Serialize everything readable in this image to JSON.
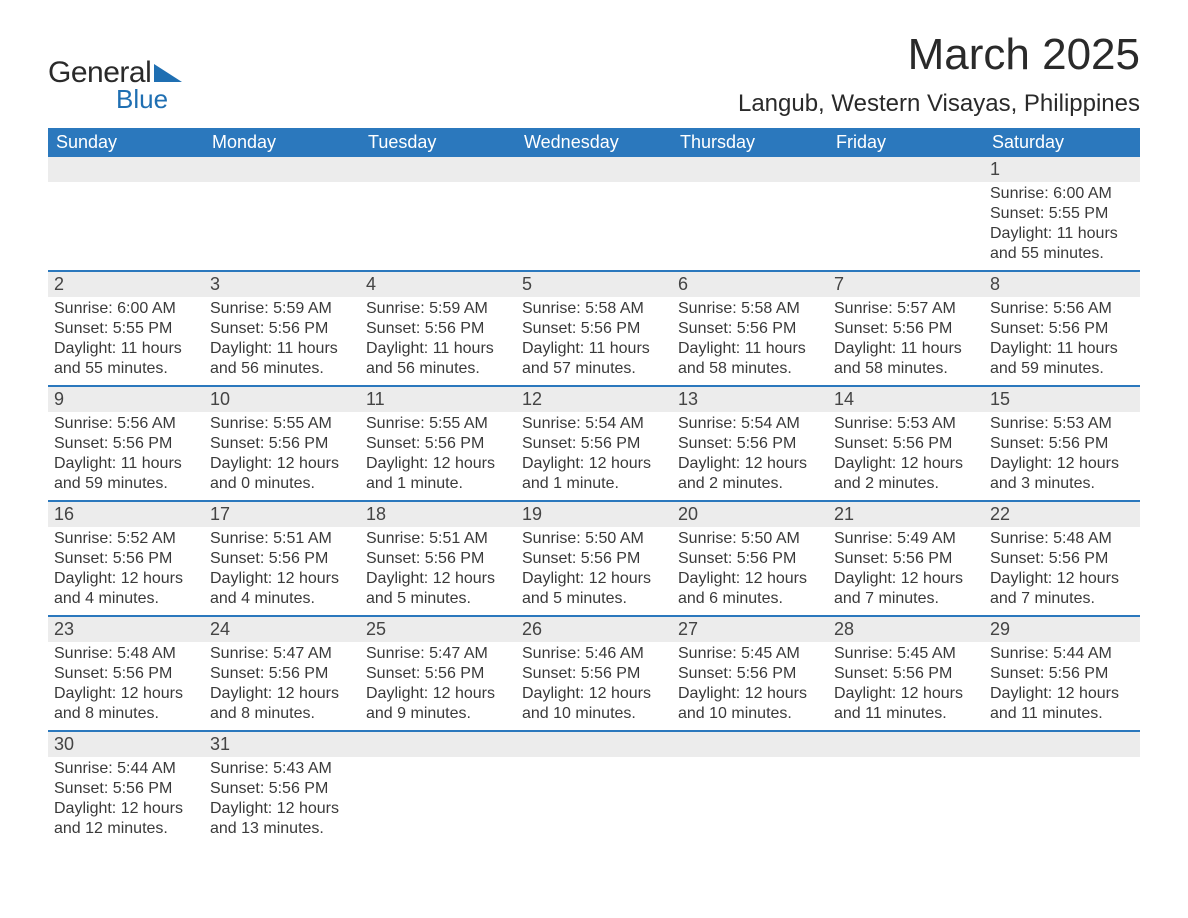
{
  "logo": {
    "general": "General",
    "blue": "Blue",
    "tri_color": "#1f6fb2"
  },
  "title": "March 2025",
  "location": "Langub, Western Visayas, Philippines",
  "colors": {
    "header_bg": "#2b78bd",
    "header_text": "#ffffff",
    "daynum_bg": "#ececec",
    "row_border": "#2b78bd",
    "body_text": "#3a3a3a"
  },
  "weekdays": [
    "Sunday",
    "Monday",
    "Tuesday",
    "Wednesday",
    "Thursday",
    "Friday",
    "Saturday"
  ],
  "weeks": [
    [
      null,
      null,
      null,
      null,
      null,
      null,
      {
        "n": "1",
        "sr": "Sunrise: 6:00 AM",
        "ss": "Sunset: 5:55 PM",
        "d1": "Daylight: 11 hours",
        "d2": "and 55 minutes."
      }
    ],
    [
      {
        "n": "2",
        "sr": "Sunrise: 6:00 AM",
        "ss": "Sunset: 5:55 PM",
        "d1": "Daylight: 11 hours",
        "d2": "and 55 minutes."
      },
      {
        "n": "3",
        "sr": "Sunrise: 5:59 AM",
        "ss": "Sunset: 5:56 PM",
        "d1": "Daylight: 11 hours",
        "d2": "and 56 minutes."
      },
      {
        "n": "4",
        "sr": "Sunrise: 5:59 AM",
        "ss": "Sunset: 5:56 PM",
        "d1": "Daylight: 11 hours",
        "d2": "and 56 minutes."
      },
      {
        "n": "5",
        "sr": "Sunrise: 5:58 AM",
        "ss": "Sunset: 5:56 PM",
        "d1": "Daylight: 11 hours",
        "d2": "and 57 minutes."
      },
      {
        "n": "6",
        "sr": "Sunrise: 5:58 AM",
        "ss": "Sunset: 5:56 PM",
        "d1": "Daylight: 11 hours",
        "d2": "and 58 minutes."
      },
      {
        "n": "7",
        "sr": "Sunrise: 5:57 AM",
        "ss": "Sunset: 5:56 PM",
        "d1": "Daylight: 11 hours",
        "d2": "and 58 minutes."
      },
      {
        "n": "8",
        "sr": "Sunrise: 5:56 AM",
        "ss": "Sunset: 5:56 PM",
        "d1": "Daylight: 11 hours",
        "d2": "and 59 minutes."
      }
    ],
    [
      {
        "n": "9",
        "sr": "Sunrise: 5:56 AM",
        "ss": "Sunset: 5:56 PM",
        "d1": "Daylight: 11 hours",
        "d2": "and 59 minutes."
      },
      {
        "n": "10",
        "sr": "Sunrise: 5:55 AM",
        "ss": "Sunset: 5:56 PM",
        "d1": "Daylight: 12 hours",
        "d2": "and 0 minutes."
      },
      {
        "n": "11",
        "sr": "Sunrise: 5:55 AM",
        "ss": "Sunset: 5:56 PM",
        "d1": "Daylight: 12 hours",
        "d2": "and 1 minute."
      },
      {
        "n": "12",
        "sr": "Sunrise: 5:54 AM",
        "ss": "Sunset: 5:56 PM",
        "d1": "Daylight: 12 hours",
        "d2": "and 1 minute."
      },
      {
        "n": "13",
        "sr": "Sunrise: 5:54 AM",
        "ss": "Sunset: 5:56 PM",
        "d1": "Daylight: 12 hours",
        "d2": "and 2 minutes."
      },
      {
        "n": "14",
        "sr": "Sunrise: 5:53 AM",
        "ss": "Sunset: 5:56 PM",
        "d1": "Daylight: 12 hours",
        "d2": "and 2 minutes."
      },
      {
        "n": "15",
        "sr": "Sunrise: 5:53 AM",
        "ss": "Sunset: 5:56 PM",
        "d1": "Daylight: 12 hours",
        "d2": "and 3 minutes."
      }
    ],
    [
      {
        "n": "16",
        "sr": "Sunrise: 5:52 AM",
        "ss": "Sunset: 5:56 PM",
        "d1": "Daylight: 12 hours",
        "d2": "and 4 minutes."
      },
      {
        "n": "17",
        "sr": "Sunrise: 5:51 AM",
        "ss": "Sunset: 5:56 PM",
        "d1": "Daylight: 12 hours",
        "d2": "and 4 minutes."
      },
      {
        "n": "18",
        "sr": "Sunrise: 5:51 AM",
        "ss": "Sunset: 5:56 PM",
        "d1": "Daylight: 12 hours",
        "d2": "and 5 minutes."
      },
      {
        "n": "19",
        "sr": "Sunrise: 5:50 AM",
        "ss": "Sunset: 5:56 PM",
        "d1": "Daylight: 12 hours",
        "d2": "and 5 minutes."
      },
      {
        "n": "20",
        "sr": "Sunrise: 5:50 AM",
        "ss": "Sunset: 5:56 PM",
        "d1": "Daylight: 12 hours",
        "d2": "and 6 minutes."
      },
      {
        "n": "21",
        "sr": "Sunrise: 5:49 AM",
        "ss": "Sunset: 5:56 PM",
        "d1": "Daylight: 12 hours",
        "d2": "and 7 minutes."
      },
      {
        "n": "22",
        "sr": "Sunrise: 5:48 AM",
        "ss": "Sunset: 5:56 PM",
        "d1": "Daylight: 12 hours",
        "d2": "and 7 minutes."
      }
    ],
    [
      {
        "n": "23",
        "sr": "Sunrise: 5:48 AM",
        "ss": "Sunset: 5:56 PM",
        "d1": "Daylight: 12 hours",
        "d2": "and 8 minutes."
      },
      {
        "n": "24",
        "sr": "Sunrise: 5:47 AM",
        "ss": "Sunset: 5:56 PM",
        "d1": "Daylight: 12 hours",
        "d2": "and 8 minutes."
      },
      {
        "n": "25",
        "sr": "Sunrise: 5:47 AM",
        "ss": "Sunset: 5:56 PM",
        "d1": "Daylight: 12 hours",
        "d2": "and 9 minutes."
      },
      {
        "n": "26",
        "sr": "Sunrise: 5:46 AM",
        "ss": "Sunset: 5:56 PM",
        "d1": "Daylight: 12 hours",
        "d2": "and 10 minutes."
      },
      {
        "n": "27",
        "sr": "Sunrise: 5:45 AM",
        "ss": "Sunset: 5:56 PM",
        "d1": "Daylight: 12 hours",
        "d2": "and 10 minutes."
      },
      {
        "n": "28",
        "sr": "Sunrise: 5:45 AM",
        "ss": "Sunset: 5:56 PM",
        "d1": "Daylight: 12 hours",
        "d2": "and 11 minutes."
      },
      {
        "n": "29",
        "sr": "Sunrise: 5:44 AM",
        "ss": "Sunset: 5:56 PM",
        "d1": "Daylight: 12 hours",
        "d2": "and 11 minutes."
      }
    ],
    [
      {
        "n": "30",
        "sr": "Sunrise: 5:44 AM",
        "ss": "Sunset: 5:56 PM",
        "d1": "Daylight: 12 hours",
        "d2": "and 12 minutes."
      },
      {
        "n": "31",
        "sr": "Sunrise: 5:43 AM",
        "ss": "Sunset: 5:56 PM",
        "d1": "Daylight: 12 hours",
        "d2": "and 13 minutes."
      },
      null,
      null,
      null,
      null,
      null
    ]
  ]
}
